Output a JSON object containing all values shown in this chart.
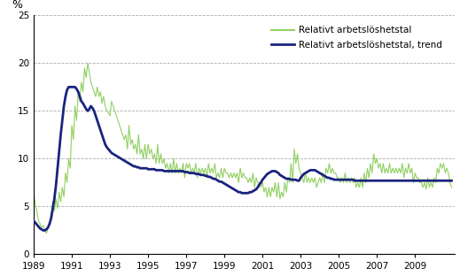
{
  "title": "",
  "ylabel": "%",
  "ylim": [
    0,
    25
  ],
  "yticks": [
    0,
    5,
    10,
    15,
    20,
    25
  ],
  "xtick_years": [
    1989,
    1991,
    1993,
    1995,
    1997,
    1999,
    2001,
    2003,
    2005,
    2007,
    2009
  ],
  "legend_labels": [
    "Relativt arbetslöshetstal",
    "Relativt arbetslöshetstal, trend"
  ],
  "line_color_raw": "#90d060",
  "line_color_trend": "#1a237e",
  "background_color": "#ffffff",
  "grid_color": "#888888",
  "start_year": 1989,
  "start_month": 1,
  "raw_data": [
    6.5,
    5.2,
    4.5,
    3.5,
    3.2,
    2.8,
    3.0,
    2.5,
    2.2,
    2.8,
    3.2,
    4.0,
    5.5,
    4.5,
    5.8,
    4.8,
    6.5,
    5.5,
    7.0,
    6.0,
    8.5,
    7.5,
    10.0,
    9.0,
    13.5,
    12.0,
    15.5,
    14.0,
    17.0,
    16.0,
    18.0,
    17.0,
    19.5,
    18.5,
    20.0,
    19.0,
    18.0,
    17.5,
    17.0,
    16.5,
    17.5,
    16.5,
    17.0,
    15.8,
    16.5,
    15.5,
    15.0,
    14.8,
    14.5,
    16.0,
    15.5,
    15.0,
    14.5,
    14.0,
    13.5,
    13.0,
    12.5,
    12.0,
    12.5,
    11.0,
    13.5,
    11.5,
    12.0,
    11.0,
    11.5,
    10.5,
    12.5,
    10.5,
    11.0,
    10.0,
    11.5,
    10.0,
    11.5,
    10.5,
    11.0,
    10.0,
    10.5,
    9.5,
    11.5,
    9.5,
    10.5,
    9.5,
    10.0,
    9.0,
    9.5,
    8.5,
    9.5,
    8.5,
    10.0,
    8.5,
    9.5,
    8.5,
    9.0,
    8.5,
    9.5,
    8.0,
    9.5,
    9.0,
    9.5,
    8.5,
    9.0,
    8.5,
    9.5,
    8.0,
    9.0,
    8.5,
    9.0,
    8.5,
    9.0,
    8.0,
    9.5,
    8.5,
    9.0,
    8.5,
    9.5,
    8.0,
    8.5,
    8.0,
    9.0,
    8.0,
    9.0,
    8.5,
    8.5,
    8.0,
    8.5,
    8.0,
    8.5,
    8.0,
    8.5,
    7.5,
    9.0,
    8.0,
    8.5,
    8.0,
    8.0,
    7.5,
    8.0,
    7.5,
    8.5,
    7.0,
    8.0,
    7.5,
    7.5,
    7.0,
    7.5,
    6.5,
    7.0,
    6.0,
    7.0,
    6.0,
    7.0,
    6.5,
    7.5,
    6.0,
    7.5,
    5.8,
    6.5,
    6.0,
    7.5,
    6.5,
    8.0,
    7.5,
    9.5,
    7.5,
    11.0,
    9.5,
    10.5,
    9.0,
    8.5,
    8.0,
    7.5,
    8.5,
    7.5,
    8.0,
    7.5,
    8.0,
    7.5,
    8.0,
    7.0,
    7.5,
    8.0,
    7.5,
    8.5,
    7.5,
    9.0,
    8.5,
    9.5,
    8.5,
    9.0,
    8.5,
    8.5,
    8.0,
    8.0,
    7.5,
    8.0,
    7.5,
    8.5,
    7.5,
    8.0,
    7.5,
    8.0,
    7.5,
    8.0,
    7.0,
    7.5,
    7.0,
    8.0,
    7.0,
    8.5,
    7.5,
    9.0,
    8.0,
    9.5,
    8.5,
    10.5,
    9.5,
    10.0,
    9.0,
    9.5,
    8.5,
    9.5,
    8.5,
    9.0,
    8.5,
    9.5,
    8.5,
    9.0,
    8.5,
    9.0,
    8.5,
    9.0,
    8.5,
    9.5,
    8.0,
    9.0,
    8.5,
    9.5,
    8.5,
    9.0,
    7.5,
    8.5,
    8.0,
    8.0,
    7.5,
    7.5,
    7.0,
    7.5,
    6.8,
    8.0,
    7.0,
    7.5,
    7.0,
    8.0,
    7.5,
    9.0,
    8.5,
    9.5,
    9.0,
    9.5,
    8.5,
    9.0,
    8.5,
    7.5,
    7.0
  ],
  "trend_data": [
    3.5,
    3.3,
    3.1,
    2.9,
    2.7,
    2.6,
    2.5,
    2.5,
    2.6,
    2.8,
    3.2,
    3.8,
    4.8,
    5.8,
    7.2,
    9.0,
    10.8,
    12.5,
    14.0,
    15.5,
    16.5,
    17.2,
    17.5,
    17.5,
    17.5,
    17.5,
    17.5,
    17.3,
    17.0,
    16.5,
    16.0,
    15.8,
    15.5,
    15.2,
    15.0,
    15.2,
    15.5,
    15.3,
    15.0,
    14.5,
    14.0,
    13.5,
    13.0,
    12.5,
    12.0,
    11.5,
    11.2,
    11.0,
    10.8,
    10.6,
    10.5,
    10.4,
    10.3,
    10.2,
    10.1,
    10.0,
    9.9,
    9.8,
    9.7,
    9.6,
    9.5,
    9.4,
    9.3,
    9.2,
    9.2,
    9.1,
    9.1,
    9.0,
    9.0,
    9.0,
    9.0,
    9.0,
    8.9,
    8.9,
    8.9,
    8.9,
    8.9,
    8.8,
    8.8,
    8.8,
    8.8,
    8.8,
    8.7,
    8.7,
    8.7,
    8.7,
    8.7,
    8.7,
    8.7,
    8.7,
    8.7,
    8.7,
    8.7,
    8.7,
    8.7,
    8.6,
    8.6,
    8.6,
    8.5,
    8.5,
    8.5,
    8.5,
    8.4,
    8.4,
    8.4,
    8.3,
    8.3,
    8.3,
    8.2,
    8.2,
    8.1,
    8.1,
    8.0,
    7.9,
    7.9,
    7.8,
    7.7,
    7.6,
    7.6,
    7.5,
    7.4,
    7.3,
    7.2,
    7.1,
    7.0,
    6.9,
    6.8,
    6.7,
    6.6,
    6.5,
    6.5,
    6.4,
    6.4,
    6.4,
    6.4,
    6.4,
    6.5,
    6.5,
    6.6,
    6.7,
    6.8,
    7.0,
    7.3,
    7.5,
    7.8,
    8.0,
    8.2,
    8.4,
    8.5,
    8.6,
    8.7,
    8.7,
    8.7,
    8.6,
    8.5,
    8.3,
    8.2,
    8.1,
    8.0,
    7.9,
    7.9,
    7.9,
    7.8,
    7.8,
    7.8,
    7.8,
    7.7,
    7.7,
    8.0,
    8.2,
    8.4,
    8.5,
    8.6,
    8.7,
    8.8,
    8.8,
    8.8,
    8.8,
    8.7,
    8.6,
    8.5,
    8.4,
    8.3,
    8.2,
    8.1,
    8.0,
    8.0,
    7.9,
    7.9,
    7.8,
    7.8,
    7.8,
    7.8,
    7.8,
    7.8,
    7.8,
    7.8,
    7.8,
    7.8,
    7.8,
    7.8,
    7.8,
    7.7,
    7.7,
    7.7,
    7.7,
    7.7,
    7.7,
    7.7,
    7.7,
    7.7,
    7.7,
    7.7,
    7.7,
    7.7,
    7.7,
    7.7,
    7.7,
    7.7,
    7.7,
    7.7,
    7.7,
    7.7,
    7.7,
    7.7,
    7.7,
    7.7,
    7.7,
    7.7,
    7.7,
    7.7,
    7.7,
    7.7,
    7.7,
    7.7,
    7.7,
    7.7,
    7.7,
    7.7,
    7.7,
    7.7,
    7.7,
    7.7,
    7.7,
    7.7,
    7.7,
    7.7,
    7.7,
    7.7,
    7.7,
    7.7,
    7.7,
    7.7,
    7.7,
    7.7,
    7.7,
    7.7,
    7.7,
    7.7,
    7.7,
    7.7,
    7.7,
    7.7,
    7.7
  ]
}
